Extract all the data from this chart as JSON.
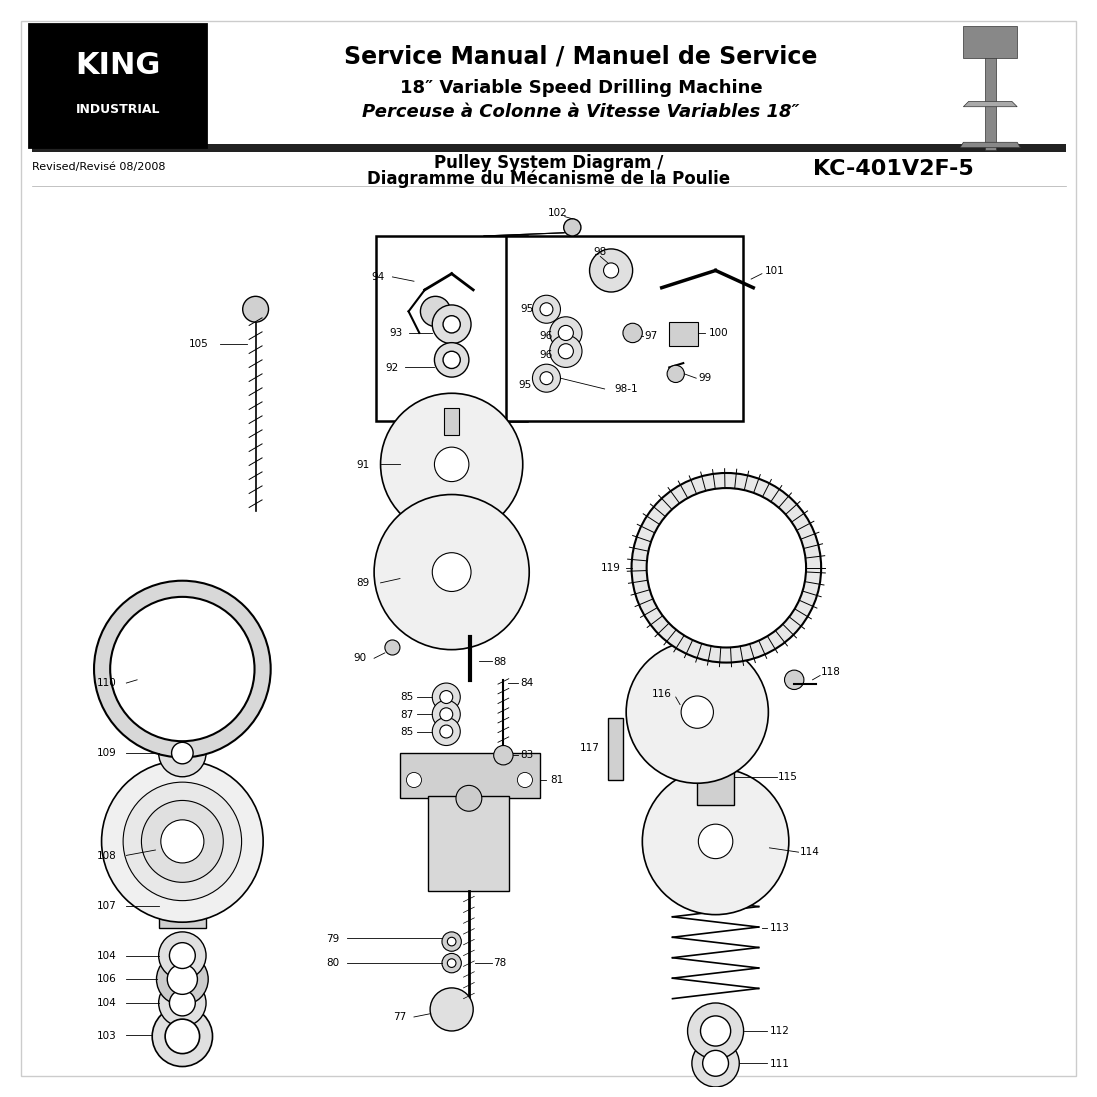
{
  "page_width": 10.8,
  "page_height": 13.97,
  "bg_color": "#ffffff",
  "header": {
    "title_line1": "Service Manual / Manuel de Service",
    "title_line2": "18″ Variable Speed Drilling Machine",
    "title_line3": "Perceuse à Colonne à Vitesse Variables 18″",
    "revised_text": "Revised/Revisé 08/2008",
    "diagram_title_line1": "Pulley System Diagram /",
    "diagram_title_line2": "Diagramme du Mécanisme de la Poulie",
    "model_number": "KC-401V2F-5",
    "logo_text_top": "KING",
    "logo_text_bottom": "INDUSTRIAL"
  }
}
